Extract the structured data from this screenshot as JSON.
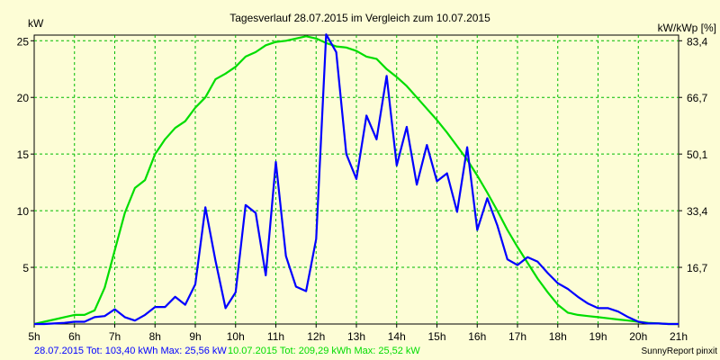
{
  "chart_data": {
    "type": "line",
    "title": "Tagesverlauf 28.07.2015 im Vergleich zum 10.07.2015",
    "ylabel_left": "kW",
    "ylabel_right": "kW/kWp [%]",
    "x_ticks": [
      "5h",
      "6h",
      "7h",
      "8h",
      "9h",
      "10h",
      "11h",
      "12h",
      "13h",
      "14h",
      "15h",
      "16h",
      "17h",
      "18h",
      "19h",
      "20h",
      "21h"
    ],
    "xlim": [
      5,
      21
    ],
    "ylim": [
      0,
      25.5
    ],
    "y_ticks_left": [
      "5",
      "10",
      "15",
      "20",
      "25"
    ],
    "y_ticks_right": [
      "16,7",
      "33,4",
      "50,1",
      "66,7",
      "83,4"
    ],
    "grid": true,
    "series": [
      {
        "name": "28.07.2015",
        "color": "#0000ff",
        "x": [
          5.0,
          5.25,
          5.5,
          5.75,
          6.0,
          6.25,
          6.5,
          6.75,
          7.0,
          7.25,
          7.5,
          7.75,
          8.0,
          8.25,
          8.5,
          8.75,
          9.0,
          9.25,
          9.5,
          9.75,
          10.0,
          10.25,
          10.5,
          10.75,
          11.0,
          11.25,
          11.5,
          11.75,
          12.0,
          12.25,
          12.5,
          12.75,
          13.0,
          13.25,
          13.5,
          13.75,
          14.0,
          14.25,
          14.5,
          14.75,
          15.0,
          15.25,
          15.5,
          15.75,
          16.0,
          16.25,
          16.5,
          16.75,
          17.0,
          17.25,
          17.5,
          17.75,
          18.0,
          18.25,
          18.5,
          18.75,
          19.0,
          19.25,
          19.5,
          19.75,
          20.0,
          20.25,
          20.5,
          20.75,
          21.0
        ],
        "y": [
          0,
          0,
          0.05,
          0.1,
          0.2,
          0.2,
          0.6,
          0.7,
          1.3,
          0.6,
          0.3,
          0.8,
          1.5,
          1.5,
          2.4,
          1.7,
          3.5,
          10.3,
          5.6,
          1.4,
          2.8,
          10.5,
          9.8,
          4.3,
          14.3,
          6.0,
          3.3,
          2.9,
          7.5,
          25.56,
          24.0,
          15.0,
          12.8,
          18.4,
          16.3,
          21.9,
          14.0,
          17.4,
          12.3,
          15.8,
          12.6,
          13.3,
          9.9,
          15.6,
          8.3,
          11.1,
          8.7,
          5.7,
          5.2,
          5.9,
          5.5,
          4.5,
          3.6,
          3.1,
          2.4,
          1.8,
          1.4,
          1.4,
          1.1,
          0.6,
          0.2,
          0.05,
          0.05,
          0,
          0
        ]
      },
      {
        "name": "10.07.2015",
        "color": "#00dd00",
        "x": [
          5.0,
          5.25,
          5.5,
          5.75,
          6.0,
          6.25,
          6.5,
          6.75,
          7.0,
          7.25,
          7.5,
          7.75,
          8.0,
          8.25,
          8.5,
          8.75,
          9.0,
          9.25,
          9.5,
          9.75,
          10.0,
          10.25,
          10.5,
          10.75,
          11.0,
          11.25,
          11.5,
          11.75,
          12.0,
          12.25,
          12.5,
          12.75,
          13.0,
          13.25,
          13.5,
          13.75,
          14.0,
          14.25,
          14.5,
          14.75,
          15.0,
          15.25,
          15.5,
          15.75,
          16.0,
          16.25,
          16.5,
          16.75,
          17.0,
          17.25,
          17.5,
          17.75,
          18.0,
          18.25,
          18.5,
          18.75,
          19.0,
          19.25,
          19.5,
          19.75,
          20.0,
          20.25,
          20.5,
          20.75,
          21.0
        ],
        "y": [
          0,
          0.2,
          0.4,
          0.6,
          0.8,
          0.8,
          1.2,
          3.2,
          6.5,
          9.8,
          12.0,
          12.7,
          15.0,
          16.3,
          17.3,
          17.9,
          19.1,
          20.0,
          21.6,
          22.1,
          22.7,
          23.6,
          24.0,
          24.6,
          24.9,
          25.0,
          25.2,
          25.4,
          25.2,
          24.8,
          24.5,
          24.4,
          24.1,
          23.6,
          23.4,
          22.5,
          21.8,
          21.0,
          20.0,
          19.0,
          18.0,
          16.9,
          15.7,
          14.5,
          13.1,
          11.6,
          10.0,
          8.3,
          6.8,
          5.4,
          4.0,
          2.8,
          1.7,
          1.0,
          0.8,
          0.7,
          0.6,
          0.5,
          0.4,
          0.3,
          0.2,
          0.1,
          0.05,
          0,
          0
        ]
      }
    ]
  },
  "footer": {
    "summary_blue": "28.07.2015 Tot: 103,40 kWh Max: 25,56 kW",
    "summary_green": "10.07.2015 Tot: 209,29 kWh Max: 25,52 kW",
    "brand": "SunnyReport pinxit"
  }
}
